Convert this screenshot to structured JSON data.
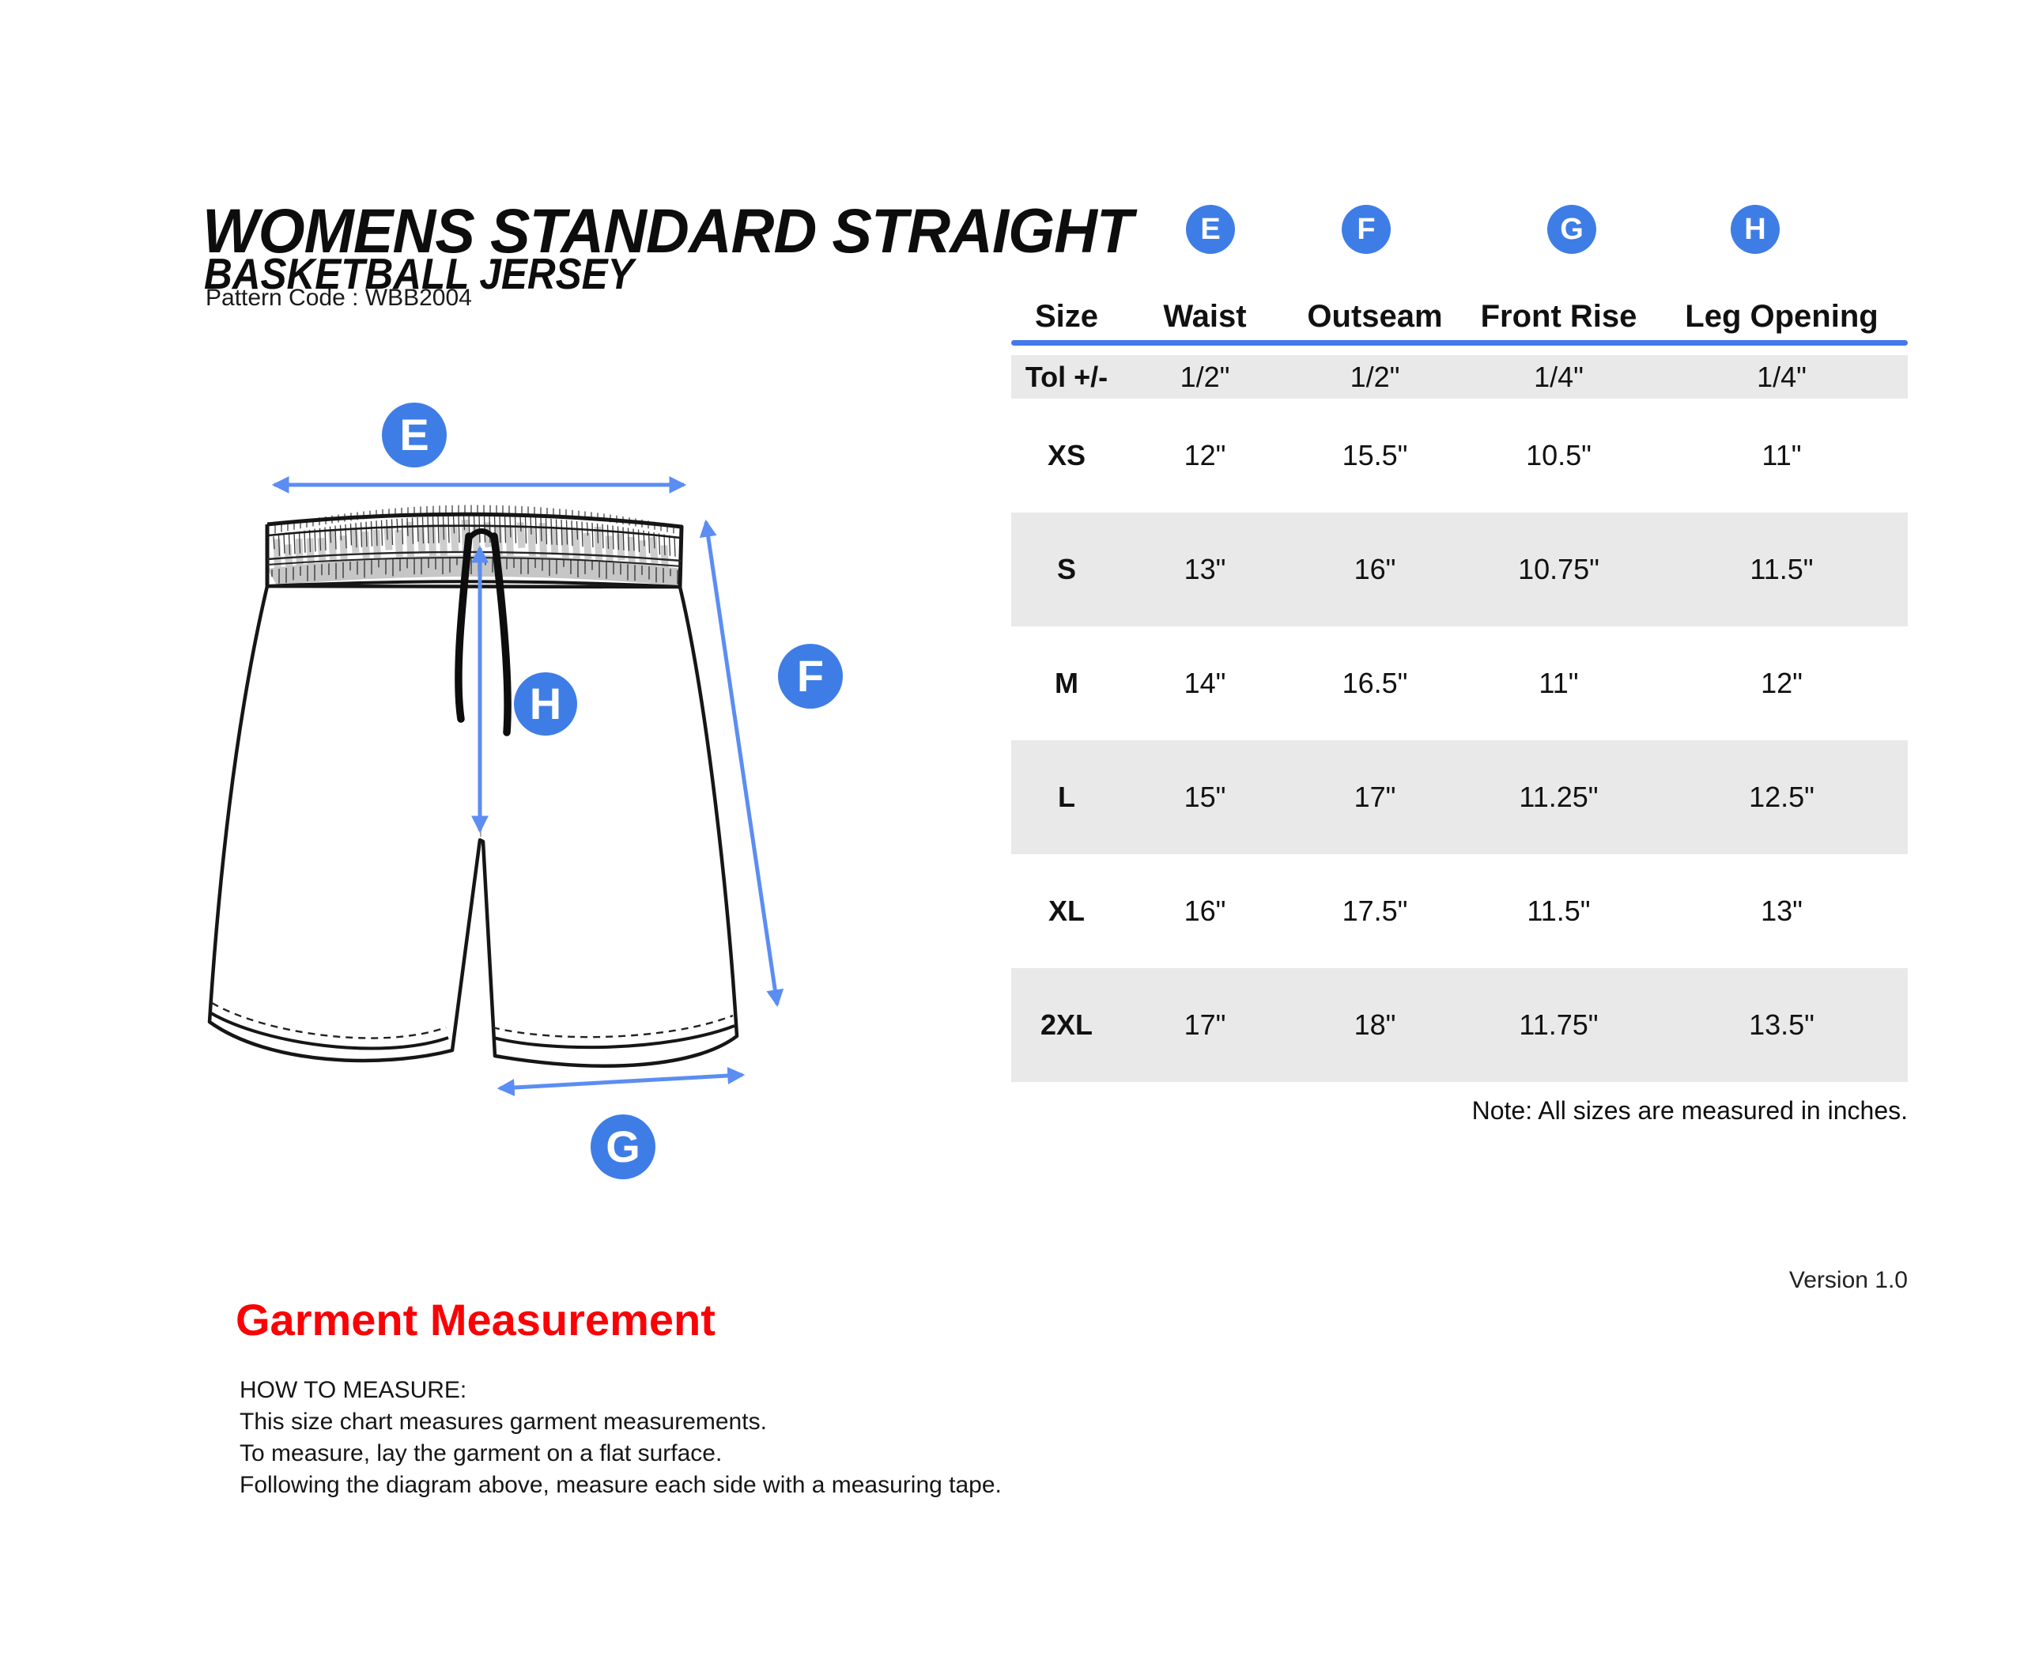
{
  "header": {
    "title_line1": "WOMENS STANDARD STRAIGHT",
    "title_line2": "BASKETBALL JERSEY",
    "pattern_code": "Pattern Code : WBB2004"
  },
  "diagram": {
    "labels": {
      "e": "E",
      "f": "F",
      "g": "G",
      "h": "H"
    }
  },
  "size_chart": {
    "columns": [
      "Size",
      "Waist",
      "Outseam",
      "Front Rise",
      "Leg Opening"
    ],
    "column_markers": [
      "E",
      "F",
      "G",
      "H"
    ],
    "rows": [
      {
        "size": "Tol +/-",
        "values": [
          "1/2\"",
          "1/2\"",
          "1/4\"",
          "1/4\""
        ]
      },
      {
        "size": "XS",
        "values": [
          "12\"",
          "15.5\"",
          "10.5\"",
          "11\""
        ]
      },
      {
        "size": "S",
        "values": [
          "13\"",
          "16\"",
          "10.75\"",
          "11.5\""
        ]
      },
      {
        "size": "M",
        "values": [
          "14\"",
          "16.5\"",
          "11\"",
          "12\""
        ]
      },
      {
        "size": "L",
        "values": [
          "15\"",
          "17\"",
          "11.25\"",
          "12.5\""
        ]
      },
      {
        "size": "XL",
        "values": [
          "16\"",
          "17.5\"",
          "11.5\"",
          "13\""
        ]
      },
      {
        "size": "2XL",
        "values": [
          "17\"",
          "18\"",
          "11.75\"",
          "13.5\""
        ]
      }
    ],
    "note": "Note: All sizes are measured in inches."
  },
  "footer": {
    "version": "Version 1.0",
    "section_title": "Garment Measurement",
    "how_to_measure": [
      "HOW TO MEASURE:",
      "This size chart measures garment measurements.",
      "To measure, lay the garment on a flat surface.",
      "Following the diagram above, measure each side with a measuring tape."
    ]
  },
  "colors": {
    "accent_blue": "#3f7de6",
    "arrow_blue": "#5b8df3",
    "rule_blue": "#4479ec",
    "row_gray": "#e9e9e9",
    "heading_red": "#fb0005",
    "waistband_gray": "#c6c6c6"
  }
}
